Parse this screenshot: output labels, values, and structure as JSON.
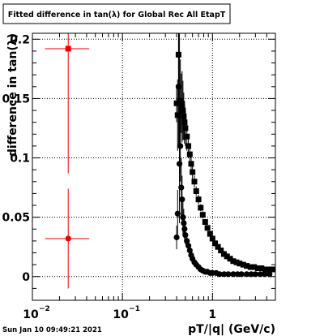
{
  "chart_data": {
    "type": "scatter",
    "title": "Fitted difference in tan(λ) for Global Rec All EtapT",
    "xlabel": "pT/|q| (GeV/c)",
    "ylabel": "difference in tan(λ)",
    "x_scale": "log",
    "xlim": [
      0.01,
      5.0
    ],
    "ylim": [
      -0.02,
      0.205
    ],
    "grid": true,
    "x_ticks": [
      {
        "value": 0.01,
        "base": "10",
        "exp": "−2"
      },
      {
        "value": 0.1,
        "base": "10",
        "exp": "−1"
      },
      {
        "value": 1,
        "label": "1"
      }
    ],
    "y_ticks": [
      {
        "value": 0,
        "label": "0"
      },
      {
        "value": 0.05,
        "label": "0.05"
      },
      {
        "value": 0.1,
        "label": "0.1"
      },
      {
        "value": 0.15,
        "label": "0.15"
      },
      {
        "value": 0.2,
        "label": "0.2"
      }
    ],
    "footer": "Sun Jan 10 09:49:21 2021",
    "series": [
      {
        "marker": "square",
        "color": "#000000",
        "points": [
          [
            0.4,
            0.146,
            0.016
          ],
          [
            0.41,
            0.136,
            0.03
          ],
          [
            0.42,
            0.187,
            0.04
          ],
          [
            0.43,
            0.147,
            0.06
          ],
          [
            0.44,
            0.148,
            0.035
          ],
          [
            0.45,
            0.146,
            0.025
          ],
          [
            0.46,
            0.143,
            0.03
          ],
          [
            0.47,
            0.14,
            0.025
          ],
          [
            0.48,
            0.135,
            0.02
          ],
          [
            0.49,
            0.13,
            0.018
          ],
          [
            0.5,
            0.125,
            0.015
          ],
          [
            0.52,
            0.118,
            0.012
          ],
          [
            0.54,
            0.11,
            0.01
          ],
          [
            0.56,
            0.103,
            0.008
          ],
          [
            0.58,
            0.095,
            0.007
          ],
          [
            0.6,
            0.088,
            0.006
          ],
          [
            0.63,
            0.08,
            0.005
          ],
          [
            0.66,
            0.072,
            0.004
          ],
          [
            0.7,
            0.065,
            0.004
          ],
          [
            0.74,
            0.058,
            0.003
          ],
          [
            0.78,
            0.052,
            0.003
          ],
          [
            0.83,
            0.046,
            0.002
          ],
          [
            0.88,
            0.041,
            0.002
          ],
          [
            0.94,
            0.036,
            0.002
          ],
          [
            1.0,
            0.032,
            0.002
          ],
          [
            1.07,
            0.028,
            0.001
          ],
          [
            1.15,
            0.025,
            0.001
          ],
          [
            1.24,
            0.022,
            0.001
          ],
          [
            1.34,
            0.019,
            0.001
          ],
          [
            1.45,
            0.017,
            0.001
          ],
          [
            1.57,
            0.015,
            0.001
          ],
          [
            1.7,
            0.013,
            0.001
          ],
          [
            1.85,
            0.012,
            0.001
          ],
          [
            2.0,
            0.011,
            0.001
          ],
          [
            2.2,
            0.01,
            0.001
          ],
          [
            2.4,
            0.009,
            0.001
          ],
          [
            2.65,
            0.008,
            0.001
          ],
          [
            2.9,
            0.008,
            0.001
          ],
          [
            3.2,
            0.007,
            0.001
          ],
          [
            3.5,
            0.007,
            0.001
          ],
          [
            3.85,
            0.006,
            0.001
          ],
          [
            4.2,
            0.006,
            0.001
          ],
          [
            4.6,
            0.006,
            0.001
          ]
        ]
      },
      {
        "marker": "circle",
        "color": "#000000",
        "points": [
          [
            0.4,
            0.033,
            0.01
          ],
          [
            0.41,
            0.053,
            0.02
          ],
          [
            0.42,
            0.16,
            0.05
          ],
          [
            0.43,
            0.095,
            0.05
          ],
          [
            0.44,
            0.11,
            0.03
          ],
          [
            0.45,
            0.075,
            0.025
          ],
          [
            0.46,
            0.065,
            0.02
          ],
          [
            0.47,
            0.05,
            0.015
          ],
          [
            0.48,
            0.045,
            0.012
          ],
          [
            0.49,
            0.04,
            0.01
          ],
          [
            0.5,
            0.035,
            0.008
          ],
          [
            0.52,
            0.03,
            0.006
          ],
          [
            0.54,
            0.026,
            0.005
          ],
          [
            0.56,
            0.022,
            0.004
          ],
          [
            0.58,
            0.018,
            0.003
          ],
          [
            0.6,
            0.015,
            0.003
          ],
          [
            0.63,
            0.012,
            0.002
          ],
          [
            0.66,
            0.01,
            0.002
          ],
          [
            0.7,
            0.008,
            0.002
          ],
          [
            0.74,
            0.006,
            0.001
          ],
          [
            0.78,
            0.005,
            0.001
          ],
          [
            0.83,
            0.004,
            0.001
          ],
          [
            0.88,
            0.004,
            0.001
          ],
          [
            0.94,
            0.003,
            0.001
          ],
          [
            1.0,
            0.003,
            0.001
          ],
          [
            1.1,
            0.003,
            0.001
          ],
          [
            1.2,
            0.002,
            0.001
          ],
          [
            1.35,
            0.002,
            0.001
          ],
          [
            1.5,
            0.002,
            0.001
          ],
          [
            1.7,
            0.002,
            0.001
          ],
          [
            1.9,
            0.002,
            0.001
          ],
          [
            2.1,
            0.002,
            0.001
          ],
          [
            2.4,
            0.002,
            0.001
          ],
          [
            2.7,
            0.002,
            0.001
          ],
          [
            3.0,
            0.002,
            0.001
          ],
          [
            3.4,
            0.002,
            0.001
          ],
          [
            3.8,
            0.002,
            0.001
          ],
          [
            4.3,
            0.002,
            0.001
          ]
        ]
      },
      {
        "marker": "square",
        "color": "#ee0000",
        "points": [
          [
            0.025,
            0.192,
            0.105
          ]
        ],
        "x_err": [
          0.02,
          0.032
        ]
      },
      {
        "marker": "circle",
        "color": "#ee0000",
        "points": [
          [
            0.025,
            0.032,
            0.042
          ]
        ],
        "x_err": [
          0.02,
          0.032
        ]
      }
    ]
  },
  "colors": {
    "frame": "#000000",
    "grid": "#000000",
    "background": "#ffffff"
  }
}
